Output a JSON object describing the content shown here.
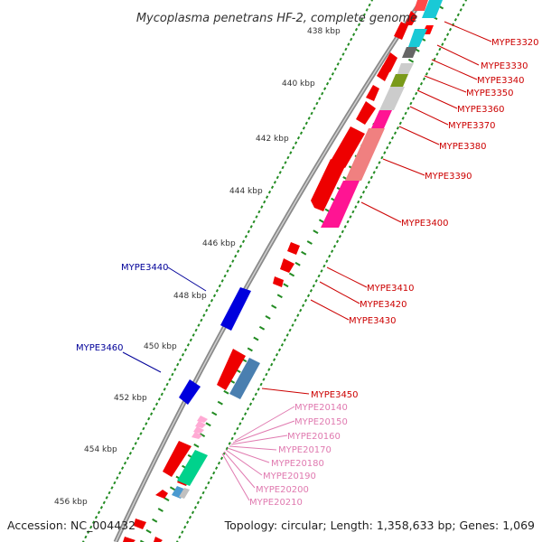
{
  "title": "Mycoplasma penetrans HF-2, complete genome",
  "footer": {
    "accession": "Accession: NC_004432",
    "summary": "Topology: circular; Length: 1,358,633 bp; Genes: 1,069"
  },
  "colors": {
    "backbone": "#888888",
    "tick_dots": "#228b22",
    "label_red": "#cc0000",
    "label_blue": "#000099",
    "label_pink": "#e07ab0"
  },
  "kbp_marks": [
    "438 kbp",
    "440 kbp",
    "442 kbp",
    "444 kbp",
    "446 kbp",
    "448 kbp",
    "450 kbp",
    "452 kbp",
    "454 kbp",
    "456 kbp"
  ],
  "gene_labels": {
    "right": [
      "MYPE3320",
      "MYPE3330",
      "MYPE3340",
      "MYPE3350",
      "MYPE3360",
      "MYPE3370",
      "MYPE3380",
      "MYPE3390",
      "MYPE3400",
      "MYPE3410",
      "MYPE3420",
      "MYPE3430",
      "MYPE3450"
    ],
    "left": [
      "MYPE3440",
      "MYPE3460"
    ],
    "pink": [
      "MYPE20140",
      "MYPE20150",
      "MYPE20160",
      "MYPE20170",
      "MYPE20180",
      "MYPE20190",
      "MYPE20200",
      "MYPE20210"
    ]
  }
}
